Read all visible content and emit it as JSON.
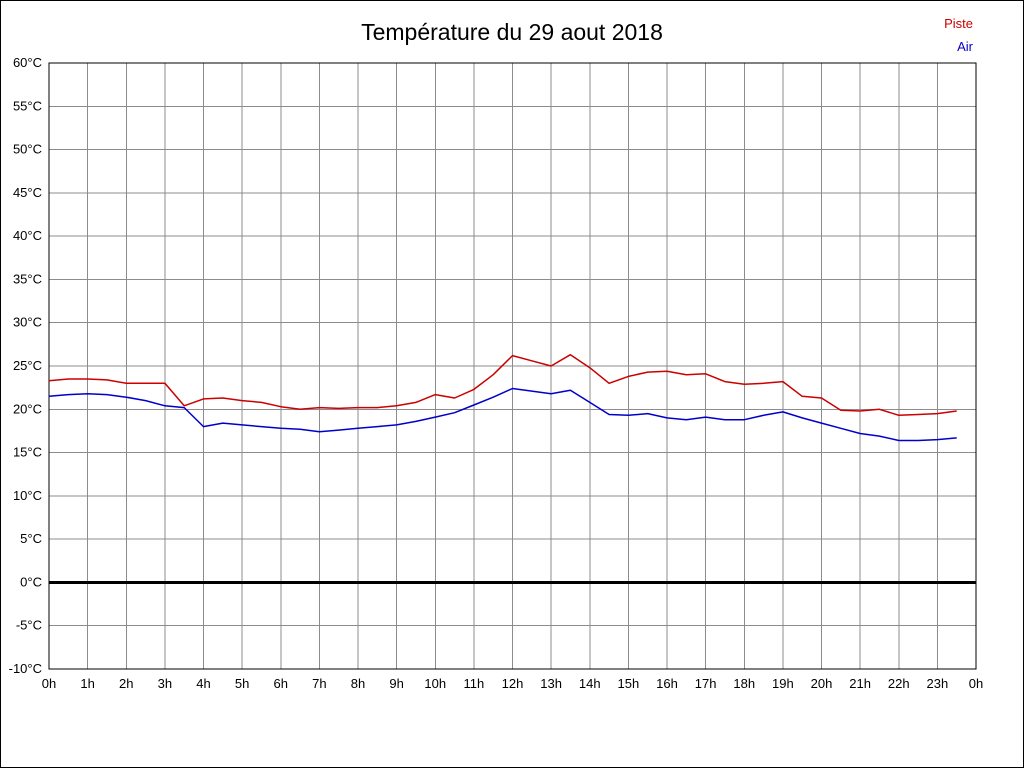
{
  "chart_data": {
    "type": "line",
    "title": "Température du 29 aout 2018",
    "xlabel": "",
    "ylabel": "",
    "xlim": [
      0,
      24
    ],
    "ylim": [
      -10,
      60
    ],
    "grid": true,
    "grid_color": "#8c8c8c",
    "zero_line": true,
    "legend_position": "top-right",
    "x_tick_labels": [
      "0h",
      "1h",
      "2h",
      "3h",
      "4h",
      "5h",
      "6h",
      "7h",
      "8h",
      "9h",
      "10h",
      "11h",
      "12h",
      "13h",
      "14h",
      "15h",
      "16h",
      "17h",
      "18h",
      "19h",
      "20h",
      "21h",
      "22h",
      "23h",
      "0h"
    ],
    "y_ticks": [
      -10,
      -5,
      0,
      5,
      10,
      15,
      20,
      25,
      30,
      35,
      40,
      45,
      50,
      55,
      60
    ],
    "y_tick_labels": [
      "-10°C",
      "-5°C",
      "0°C",
      "5°C",
      "10°C",
      "15°C",
      "20°C",
      "25°C",
      "30°C",
      "35°C",
      "40°C",
      "45°C",
      "50°C",
      "55°C",
      "60°C"
    ],
    "x": [
      0,
      0.5,
      1,
      1.5,
      2,
      2.5,
      3,
      3.5,
      4,
      4.5,
      5,
      5.5,
      6,
      6.5,
      7,
      7.5,
      8,
      8.5,
      9,
      9.5,
      10,
      10.5,
      11,
      11.5,
      12,
      12.5,
      13,
      13.5,
      14,
      14.5,
      15,
      15.5,
      16,
      16.5,
      17,
      17.5,
      18,
      18.5,
      19,
      19.5,
      20,
      20.5,
      21,
      21.5,
      22,
      22.5,
      23,
      23.5
    ],
    "series": [
      {
        "name": "Piste",
        "color": "#cc0000",
        "values": [
          23.3,
          23.5,
          23.5,
          23.4,
          23.0,
          23.0,
          23.0,
          20.4,
          21.2,
          21.3,
          21.0,
          20.8,
          20.3,
          20.0,
          20.2,
          20.1,
          20.2,
          20.2,
          20.4,
          20.8,
          21.7,
          21.3,
          22.3,
          24.0,
          26.2,
          25.6,
          25.0,
          26.3,
          24.8,
          23.0,
          23.8,
          24.3,
          24.4,
          24.0,
          24.1,
          23.2,
          22.9,
          23.0,
          23.2,
          21.5,
          21.3,
          19.9,
          19.8,
          20.0,
          19.3,
          19.4,
          19.5,
          19.8
        ]
      },
      {
        "name": "Air",
        "color": "#0000cc",
        "values": [
          21.5,
          21.7,
          21.8,
          21.7,
          21.4,
          21.0,
          20.4,
          20.2,
          18.0,
          18.4,
          18.2,
          18.0,
          17.8,
          17.7,
          17.4,
          17.6,
          17.8,
          18.0,
          18.2,
          18.6,
          19.1,
          19.6,
          20.5,
          21.4,
          22.4,
          22.1,
          21.8,
          22.2,
          20.8,
          19.4,
          19.3,
          19.5,
          19.0,
          18.8,
          19.1,
          18.8,
          18.8,
          19.3,
          19.7,
          19.0,
          18.4,
          17.8,
          17.2,
          16.9,
          16.4,
          16.4,
          16.5,
          16.7
        ]
      }
    ]
  }
}
